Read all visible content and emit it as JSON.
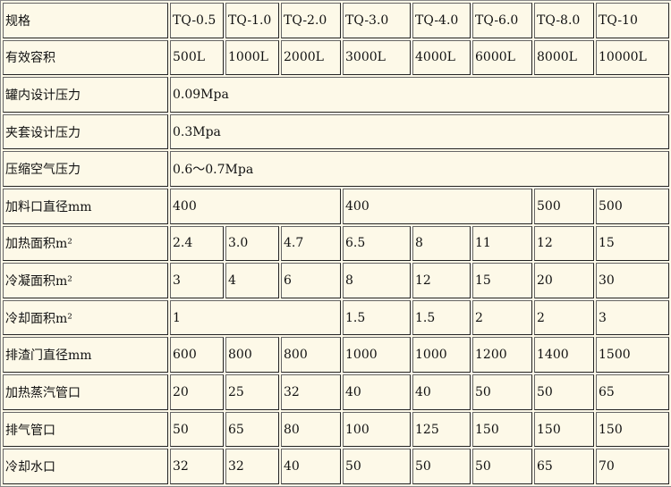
{
  "table": {
    "rows": [
      [
        "规格",
        "TQ-0.5",
        "TQ-1.0",
        "TQ-2.0",
        "TQ-3.0",
        "TQ-4.0",
        "TQ-6.0",
        "TQ-8.0",
        "TQ-10"
      ],
      [
        "有效容积",
        "500L",
        "1000L",
        "2000L",
        "3000L",
        "4000L",
        "6000L",
        "8000L",
        "10000L"
      ],
      [
        "罐内设计压力",
        "0.09Mpa"
      ],
      [
        "夹套设计压力",
        "0.3Mpa"
      ],
      [
        "压缩空气压力",
        "0.6～0.7Mpa"
      ],
      [
        "加料口直径mm",
        "400",
        "400",
        "500",
        "500"
      ],
      [
        "加热面积m²",
        "2.4",
        "3.0",
        "4.7",
        "6.5",
        "8",
        "11",
        "12",
        "15"
      ],
      [
        "冷凝面积m²",
        "3",
        "4",
        "6",
        "8",
        "12",
        "15",
        "20",
        "30"
      ],
      [
        "冷却面积m²",
        "1",
        "1.5",
        "1.5",
        "2",
        "2",
        "3"
      ],
      [
        "排渣门直径mm",
        "600",
        "800",
        "800",
        "1000",
        "1000",
        "1200",
        "1400",
        "1500"
      ],
      [
        "加热蒸汽管口",
        "20",
        "25",
        "32",
        "40",
        "40",
        "50",
        "50",
        "65"
      ],
      [
        "排气管口",
        "50",
        "65",
        "80",
        "100",
        "125",
        "150",
        "150",
        "150"
      ],
      [
        "冷却水口",
        "32",
        "32",
        "40",
        "50",
        "50",
        "50",
        "65",
        "70"
      ]
    ]
  }
}
